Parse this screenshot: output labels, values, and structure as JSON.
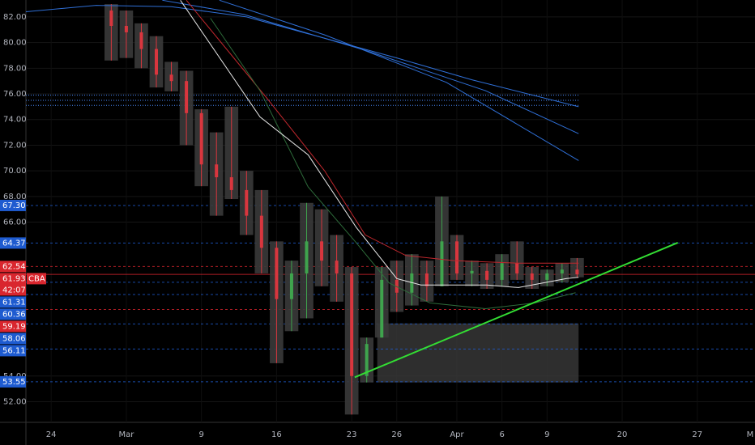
{
  "chart_data": {
    "type": "candlestick",
    "background": "#000000",
    "xlim": [
      -1.68,
      46.84
    ],
    "ylim": [
      50.39,
      83.32
    ],
    "grid": true,
    "xticks": [
      {
        "value": 0,
        "label": "24"
      },
      {
        "value": 5,
        "label": "Mar"
      },
      {
        "value": 10,
        "label": "9"
      },
      {
        "value": 15,
        "label": "16"
      },
      {
        "value": 20,
        "label": "23"
      },
      {
        "value": 23,
        "label": "26"
      },
      {
        "value": 27,
        "label": "Apr"
      },
      {
        "value": 30,
        "label": "6"
      },
      {
        "value": 33,
        "label": "9"
      },
      {
        "value": 38,
        "label": "20"
      },
      {
        "value": 43,
        "label": "27"
      },
      {
        "value": 47,
        "label": "M"
      }
    ],
    "yticks": [
      {
        "value": 52,
        "label": "52.00"
      },
      {
        "value": 54,
        "label": "54.00"
      },
      {
        "value": 66,
        "label": "66.00"
      },
      {
        "value": 68,
        "label": "68.00"
      },
      {
        "value": 70,
        "label": "70.00"
      },
      {
        "value": 72,
        "label": "72.00"
      },
      {
        "value": 74,
        "label": "74.00"
      },
      {
        "value": 76,
        "label": "76.00"
      },
      {
        "value": 78,
        "label": "78.00"
      },
      {
        "value": 80,
        "label": "80.00"
      },
      {
        "value": 82,
        "label": "82.00"
      }
    ],
    "candles": {
      "up_color": "#3fa34d",
      "down_color": "#d9363e",
      "range_color": "#3a3a3a",
      "x": [
        4,
        5,
        6,
        7,
        8,
        9,
        10,
        11,
        12,
        13,
        14,
        15,
        16,
        17,
        18,
        19,
        20,
        21,
        22,
        23,
        24,
        25,
        26,
        27,
        28,
        29,
        30,
        31,
        32,
        33,
        34,
        35
      ],
      "open": [
        82.5,
        81.3,
        80.8,
        79.5,
        77.5,
        77,
        74.5,
        70.5,
        69.5,
        68.5,
        66.5,
        64,
        60,
        62,
        64.5,
        63,
        62,
        54,
        57,
        61.5,
        60.5,
        62,
        61,
        64.5,
        62,
        62.2,
        61.5,
        62.8,
        62,
        61.5,
        62,
        62.3
      ],
      "high": [
        83,
        82.5,
        81.5,
        80.5,
        78.5,
        77.8,
        74.8,
        73,
        75,
        70,
        68.5,
        64.5,
        63,
        67.5,
        67,
        65,
        62.5,
        57,
        62.5,
        63,
        63.5,
        63,
        68,
        65,
        63,
        62.8,
        63.5,
        64.5,
        62.5,
        62.3,
        62.8,
        63.2
      ],
      "low": [
        78.6,
        78.8,
        78,
        76.5,
        76.2,
        72,
        68.8,
        66.5,
        67.8,
        65,
        62,
        55,
        57.5,
        58.5,
        61,
        59.8,
        51,
        53.5,
        57,
        59,
        59.5,
        59.8,
        61,
        61.5,
        61,
        60.8,
        61,
        61.5,
        60.8,
        61,
        61.3,
        61.7
      ],
      "close": [
        81.3,
        80.8,
        79.5,
        77.5,
        77,
        74.5,
        70.5,
        69.5,
        68.5,
        66.5,
        64,
        60,
        62,
        64.5,
        63,
        62,
        54,
        56.5,
        61.5,
        60.5,
        62,
        61,
        64.5,
        62,
        62.2,
        61.5,
        62.8,
        62,
        61.5,
        62,
        62.3,
        61.93
      ]
    },
    "series": [
      {
        "color": "#2f6fd6",
        "x": [
          -1.7,
          3,
          8,
          13,
          18,
          23,
          28,
          35.1
        ],
        "values": [
          82.4,
          82.9,
          82.8,
          82,
          80.4,
          78.8,
          77.1,
          75
        ]
      },
      {
        "color": "#2f6fd6",
        "x": [
          7.4,
          12.8,
          20.9,
          28.9,
          35.1
        ],
        "values": [
          83.3,
          82.2,
          79.4,
          76.25,
          72.9
        ]
      },
      {
        "color": "#2f6fd6",
        "x": [
          11.2,
          18.2,
          26.3,
          35.1
        ],
        "values": [
          83.3,
          80.6,
          76.9,
          70.8
        ]
      },
      {
        "color": "#c0272d",
        "x": [
          9,
          14.4,
          18.2,
          20.9,
          23.6,
          26.8,
          31.1,
          35.1
        ],
        "values": [
          83.3,
          75.6,
          70,
          65,
          63.4,
          63,
          62.8,
          62.8
        ]
      },
      {
        "color": "#2e6b3a",
        "x": [
          10.6,
          13.9,
          17.1,
          20.3,
          22.5,
          25.2,
          28.9,
          32.2,
          34.9
        ],
        "values": [
          81.9,
          76.25,
          68.75,
          64.4,
          61.25,
          59.7,
          59.25,
          59.7,
          60.5
        ]
      },
      {
        "color": "#e8e8e8",
        "x": [
          8.6,
          13.9,
          17.1,
          20.3,
          23,
          24.6,
          29,
          31.1,
          34.3,
          35.1
        ],
        "values": [
          83.3,
          74.2,
          71.25,
          65.6,
          61.6,
          61.1,
          61.1,
          60.9,
          61.6,
          61.7
        ]
      }
    ],
    "trendline": {
      "color": "#33dd33",
      "x": [
        20.2,
        41.7
      ],
      "values": [
        53.9,
        64.4
      ]
    },
    "zone": {
      "color": "#3a3a3a",
      "x": [
        21.7,
        35.1
      ],
      "values": [
        53.5,
        58.1
      ]
    },
    "dotted_levels": {
      "color": "#4a8cff",
      "x_end": 35.1,
      "values": [
        75.9,
        75.5,
        75.1
      ]
    },
    "levels": [
      {
        "value": 67.3,
        "label": "67.30",
        "color": "#1e5bd0"
      },
      {
        "value": 64.37,
        "label": "64.37",
        "color": "#1e5bd0"
      },
      {
        "value": 62.54,
        "label": "62.54",
        "color": "#d9262e"
      },
      {
        "value": 61.93,
        "label": "61.93",
        "color": "#d9262e",
        "tag": "CBA",
        "countdown": "42:07"
      },
      {
        "value": 61.31,
        "label": "61.31",
        "color": "#1e5bd0"
      },
      {
        "value": 60.36,
        "label": "60.36",
        "color": "#1e5bd0"
      },
      {
        "value": 59.19,
        "label": "59.19",
        "color": "#d9262e"
      },
      {
        "value": 58.06,
        "label": "58.06",
        "color": "#1e5bd0"
      },
      {
        "value": 56.11,
        "label": "56.11",
        "color": "#1e5bd0"
      },
      {
        "value": 53.55,
        "label": "53.55",
        "color": "#1e5bd0"
      }
    ]
  }
}
